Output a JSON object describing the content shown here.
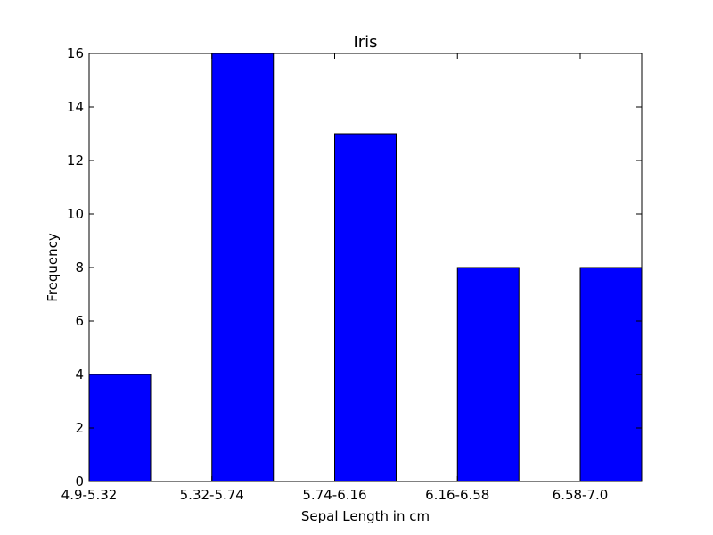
{
  "chart_data": {
    "type": "bar",
    "title": "Iris",
    "xlabel": "Sepal Length in cm",
    "ylabel": "Frequency",
    "categories": [
      "4.9-5.32",
      "5.32-5.74",
      "5.74-6.16",
      "6.16-6.58",
      "6.58-7.0"
    ],
    "values": [
      4,
      16,
      13,
      8,
      8
    ],
    "ylim": [
      0,
      16
    ],
    "yticks": [
      0,
      2,
      4,
      6,
      8,
      10,
      12,
      14,
      16
    ],
    "grid": false,
    "bar_color": "#0000ff",
    "edge_color": "#000000"
  }
}
